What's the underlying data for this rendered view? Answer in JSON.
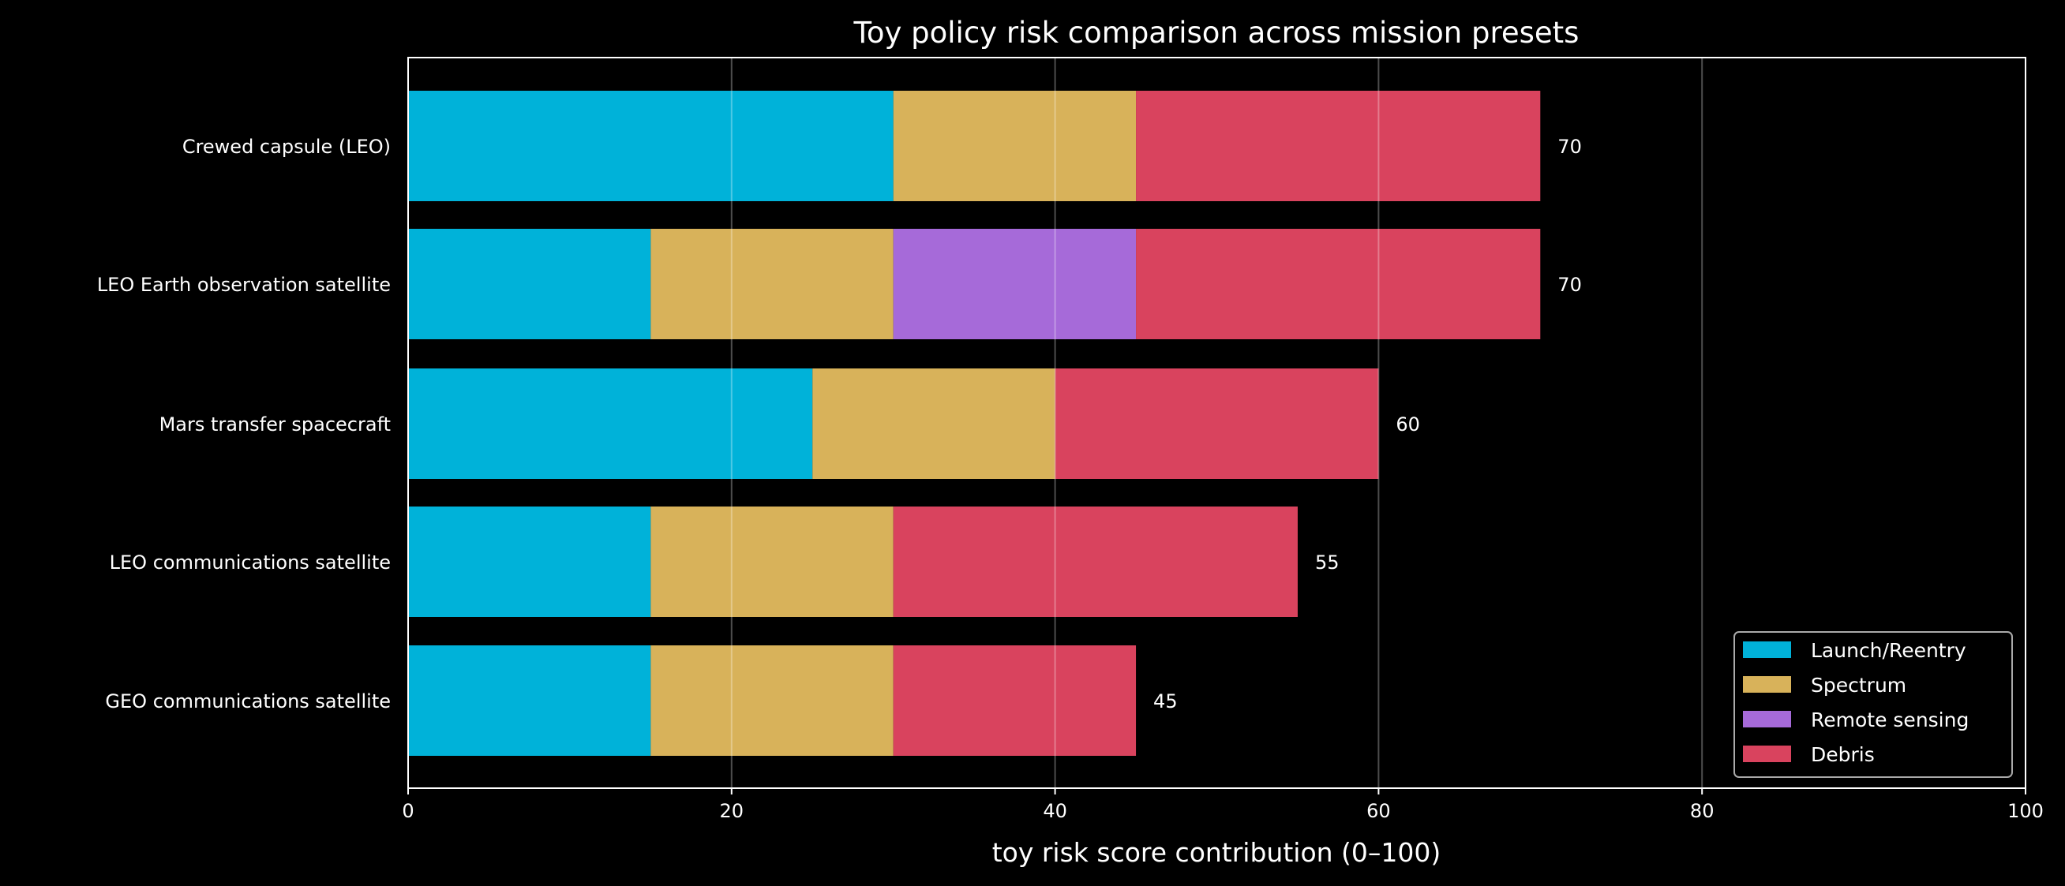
{
  "chart_data": {
    "type": "bar",
    "orientation": "horizontal",
    "stacked": true,
    "title": "Toy policy risk comparison across mission presets",
    "xlabel": "toy risk score contribution (0–100)",
    "ylabel": "",
    "xlim": [
      0,
      100
    ],
    "xticks": [
      "0",
      "20",
      "40",
      "60",
      "80",
      "100"
    ],
    "grid": "x",
    "legend_position": "lower-right",
    "background": "#000000",
    "categories": [
      "Crewed capsule (LEO)",
      "LEO Earth observation satellite",
      "Mars transfer spacecraft",
      "LEO communications satellite",
      "GEO communications satellite"
    ],
    "series": [
      {
        "name": "Launch/Reentry",
        "color": "#00b2d9",
        "values": [
          30,
          15,
          25,
          15,
          15
        ]
      },
      {
        "name": "Spectrum",
        "color": "#d8b25a",
        "values": [
          15,
          15,
          15,
          15,
          15
        ]
      },
      {
        "name": "Remote sensing",
        "color": "#a66ad9",
        "values": [
          0,
          15,
          0,
          0,
          0
        ]
      },
      {
        "name": "Debris",
        "color": "#d9435e",
        "values": [
          25,
          25,
          20,
          25,
          15
        ]
      }
    ],
    "totals": [
      "70",
      "70",
      "60",
      "55",
      "45"
    ]
  }
}
